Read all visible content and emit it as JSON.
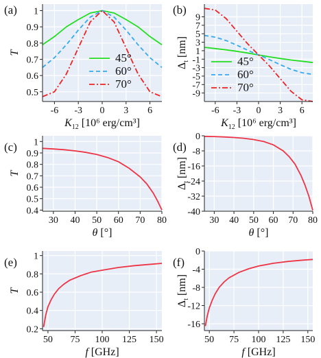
{
  "colors": {
    "background": "#ffffff",
    "plot_bg": "#e8eef8",
    "grid": "#ffffff",
    "s45": "#22dd22",
    "s60": "#33aaee",
    "s70": "#ee2222",
    "single": "#ee3344"
  },
  "chart_data": [
    {
      "id": "a",
      "type": "line",
      "panel_label": "(a)",
      "xlabel": "K",
      "xlabel_sub": "12",
      "xlabel_unit": " [10⁶ erg/cm³]",
      "ylabel": "T",
      "ylabel_sub": "",
      "xlim": [
        -7.5,
        7.5
      ],
      "ylim": [
        0.44,
        1.04
      ],
      "xticks": [
        -6,
        -3,
        0,
        3,
        6
      ],
      "xtick_labels": [
        "-6",
        "-3",
        "0",
        "3",
        "6"
      ],
      "yticks": [
        0.5,
        0.6,
        0.7,
        0.8,
        0.9,
        1.0
      ],
      "ytick_labels": [
        "0.5",
        "0.6",
        "0.7",
        "0.8",
        "0.9",
        "1"
      ],
      "legend": {
        "position": "center-bottom",
        "entries": [
          "45°",
          "60°",
          "70°"
        ]
      },
      "series": [
        {
          "name": "45°",
          "style": "solid",
          "x": [
            -7.5,
            -6,
            -4.5,
            -3,
            -1.5,
            0,
            1.5,
            3,
            4.5,
            6,
            7.5
          ],
          "y": [
            0.79,
            0.84,
            0.9,
            0.945,
            0.985,
            1.0,
            0.985,
            0.945,
            0.9,
            0.84,
            0.79
          ]
        },
        {
          "name": "60°",
          "style": "dashed",
          "x": [
            -7.5,
            -6,
            -4.5,
            -3,
            -1.5,
            0,
            1.5,
            3,
            4.5,
            6,
            7.5
          ],
          "y": [
            0.65,
            0.71,
            0.79,
            0.88,
            0.96,
            1.0,
            0.96,
            0.88,
            0.79,
            0.71,
            0.65
          ]
        },
        {
          "name": "70°",
          "style": "dashdot",
          "x": [
            -7.5,
            -6,
            -4.5,
            -3,
            -1.5,
            0,
            1.5,
            3,
            4.5,
            6,
            7.5
          ],
          "y": [
            0.47,
            0.5,
            0.61,
            0.77,
            0.93,
            1.0,
            0.93,
            0.77,
            0.61,
            0.5,
            0.47
          ]
        }
      ]
    },
    {
      "id": "b",
      "type": "line",
      "panel_label": "(b)",
      "xlabel": "K",
      "xlabel_sub": "12",
      "xlabel_unit": " [10⁶ erg/cm³]",
      "ylabel": "Δ",
      "ylabel_sub": "t",
      "ylabel_unit": " [nm]",
      "xlim": [
        -7.5,
        7.5
      ],
      "ylim": [
        -11,
        12
      ],
      "xticks": [
        -6,
        -3,
        0,
        3,
        6
      ],
      "xtick_labels": [
        "-6",
        "-3",
        "0",
        "3",
        "6"
      ],
      "yticks": [
        -9,
        -7,
        -5,
        -3,
        -1,
        1,
        3,
        5,
        7,
        9
      ],
      "ytick_labels": [
        "-9",
        "-7",
        "-5",
        "-3",
        "-1",
        "1",
        "3",
        "5",
        "7",
        "9"
      ],
      "legend": {
        "position": "bottom-left",
        "entries": [
          "45°",
          "60°",
          "70°"
        ]
      },
      "series": [
        {
          "name": "45°",
          "style": "solid",
          "x": [
            -7.5,
            -6,
            -4.5,
            -3,
            -1.5,
            0,
            1.5,
            3,
            4.5,
            6,
            7.5
          ],
          "y": [
            1.8,
            1.5,
            1.2,
            0.85,
            0.45,
            0,
            -0.45,
            -0.85,
            -1.2,
            -1.5,
            -1.8
          ]
        },
        {
          "name": "60°",
          "style": "dashed",
          "x": [
            -7.5,
            -6,
            -4.5,
            -3,
            -1.5,
            0,
            1.5,
            3,
            4.5,
            6,
            7.5
          ],
          "y": [
            4.6,
            4.2,
            3.4,
            2.3,
            1.1,
            0,
            -1.1,
            -2.3,
            -3.4,
            -4.2,
            -4.6
          ]
        },
        {
          "name": "70°",
          "style": "dashdot",
          "x": [
            -7.5,
            -6,
            -4.5,
            -3,
            -1.5,
            0,
            1.5,
            3,
            4.5,
            6,
            7.5
          ],
          "y": [
            11.0,
            10.6,
            8.6,
            5.6,
            2.6,
            0,
            -2.6,
            -5.6,
            -8.6,
            -10.6,
            -11.0
          ]
        }
      ]
    },
    {
      "id": "c",
      "type": "line",
      "panel_label": "(c)",
      "xlabel": "θ",
      "xlabel_sub": "",
      "xlabel_unit": " [°]",
      "ylabel": "T",
      "ylabel_sub": "",
      "xlim": [
        25,
        80
      ],
      "ylim": [
        0.39,
        1.05
      ],
      "xticks": [
        30,
        40,
        50,
        60,
        70,
        80
      ],
      "xtick_labels": [
        "30",
        "40",
        "50",
        "60",
        "70",
        "80"
      ],
      "yticks": [
        0.4,
        0.5,
        0.6,
        0.7,
        0.8,
        0.9,
        1.0
      ],
      "ytick_labels": [
        "0.4",
        "0.5",
        "0.6",
        "0.7",
        "0.8",
        "0.9",
        "1"
      ],
      "series": [
        {
          "name": "",
          "style": "solid",
          "x": [
            25,
            30,
            35,
            40,
            45,
            50,
            55,
            60,
            65,
            70,
            73,
            76,
            78,
            80
          ],
          "y": [
            0.94,
            0.935,
            0.928,
            0.918,
            0.905,
            0.886,
            0.86,
            0.823,
            0.765,
            0.69,
            0.63,
            0.55,
            0.48,
            0.4
          ]
        }
      ]
    },
    {
      "id": "d",
      "type": "line",
      "panel_label": "(d)",
      "xlabel": "θ",
      "xlabel_sub": "",
      "xlabel_unit": " [°]",
      "ylabel": "Δ",
      "ylabel_sub": "t",
      "ylabel_unit": " [nm]",
      "xlim": [
        25,
        80
      ],
      "ylim": [
        -40,
        0
      ],
      "xticks": [
        30,
        40,
        50,
        60,
        70,
        80
      ],
      "xtick_labels": [
        "30",
        "40",
        "50",
        "60",
        "70",
        "80"
      ],
      "yticks": [
        0,
        -8,
        -16,
        -24,
        -32,
        -40
      ],
      "ytick_labels": [
        "0",
        "-8",
        "-16",
        "-24",
        "-32",
        "-40"
      ],
      "series": [
        {
          "name": "",
          "style": "solid",
          "x": [
            25,
            30,
            35,
            40,
            45,
            50,
            55,
            60,
            65,
            68,
            71,
            74,
            76,
            78,
            80
          ],
          "y": [
            -0.3,
            -0.4,
            -0.6,
            -0.9,
            -1.3,
            -2.0,
            -3.0,
            -4.8,
            -8.0,
            -11.0,
            -15.0,
            -21.0,
            -26.0,
            -32.0,
            -39.5
          ]
        }
      ]
    },
    {
      "id": "e",
      "type": "line",
      "panel_label": "(e)",
      "xlabel": "f",
      "xlabel_sub": "",
      "xlabel_unit": " [GHz]",
      "ylabel": "T",
      "ylabel_sub": "",
      "xlim": [
        45,
        155
      ],
      "ylim": [
        0.18,
        1.05
      ],
      "xticks": [
        50,
        75,
        100,
        125,
        150
      ],
      "xtick_labels": [
        "50",
        "75",
        "100",
        "125",
        "150"
      ],
      "yticks": [
        0.2,
        0.4,
        0.6,
        0.8,
        1.0
      ],
      "ytick_labels": [
        "0.2",
        "0.4",
        "0.6",
        "0.8",
        "1"
      ],
      "series": [
        {
          "name": "",
          "style": "solid",
          "x": [
            46,
            48,
            50,
            53,
            56,
            60,
            65,
            70,
            80,
            90,
            100,
            115,
            130,
            145,
            155
          ],
          "y": [
            0.22,
            0.35,
            0.44,
            0.52,
            0.58,
            0.64,
            0.69,
            0.73,
            0.78,
            0.82,
            0.84,
            0.87,
            0.89,
            0.905,
            0.915
          ]
        }
      ]
    },
    {
      "id": "f",
      "type": "line",
      "panel_label": "(f)",
      "xlabel": "f",
      "xlabel_sub": "",
      "xlabel_unit": " [GHz]",
      "ylabel": "Δ",
      "ylabel_sub": "t",
      "ylabel_unit": " [nm]",
      "xlim": [
        45,
        155
      ],
      "ylim": [
        -17.5,
        0
      ],
      "xticks": [
        50,
        75,
        100,
        125,
        150
      ],
      "xtick_labels": [
        "50",
        "75",
        "100",
        "125",
        "150"
      ],
      "yticks": [
        0,
        -4,
        -8,
        -12,
        -16
      ],
      "ytick_labels": [
        "0",
        "-4",
        "-8",
        "-12",
        "-16"
      ],
      "series": [
        {
          "name": "",
          "style": "solid",
          "x": [
            46,
            48,
            50,
            53,
            56,
            60,
            65,
            70,
            80,
            90,
            100,
            115,
            130,
            145,
            155
          ],
          "y": [
            -16.5,
            -14.2,
            -12.5,
            -10.8,
            -9.4,
            -8.0,
            -6.8,
            -5.9,
            -4.7,
            -3.9,
            -3.3,
            -2.7,
            -2.3,
            -2.0,
            -1.85
          ]
        }
      ]
    }
  ]
}
